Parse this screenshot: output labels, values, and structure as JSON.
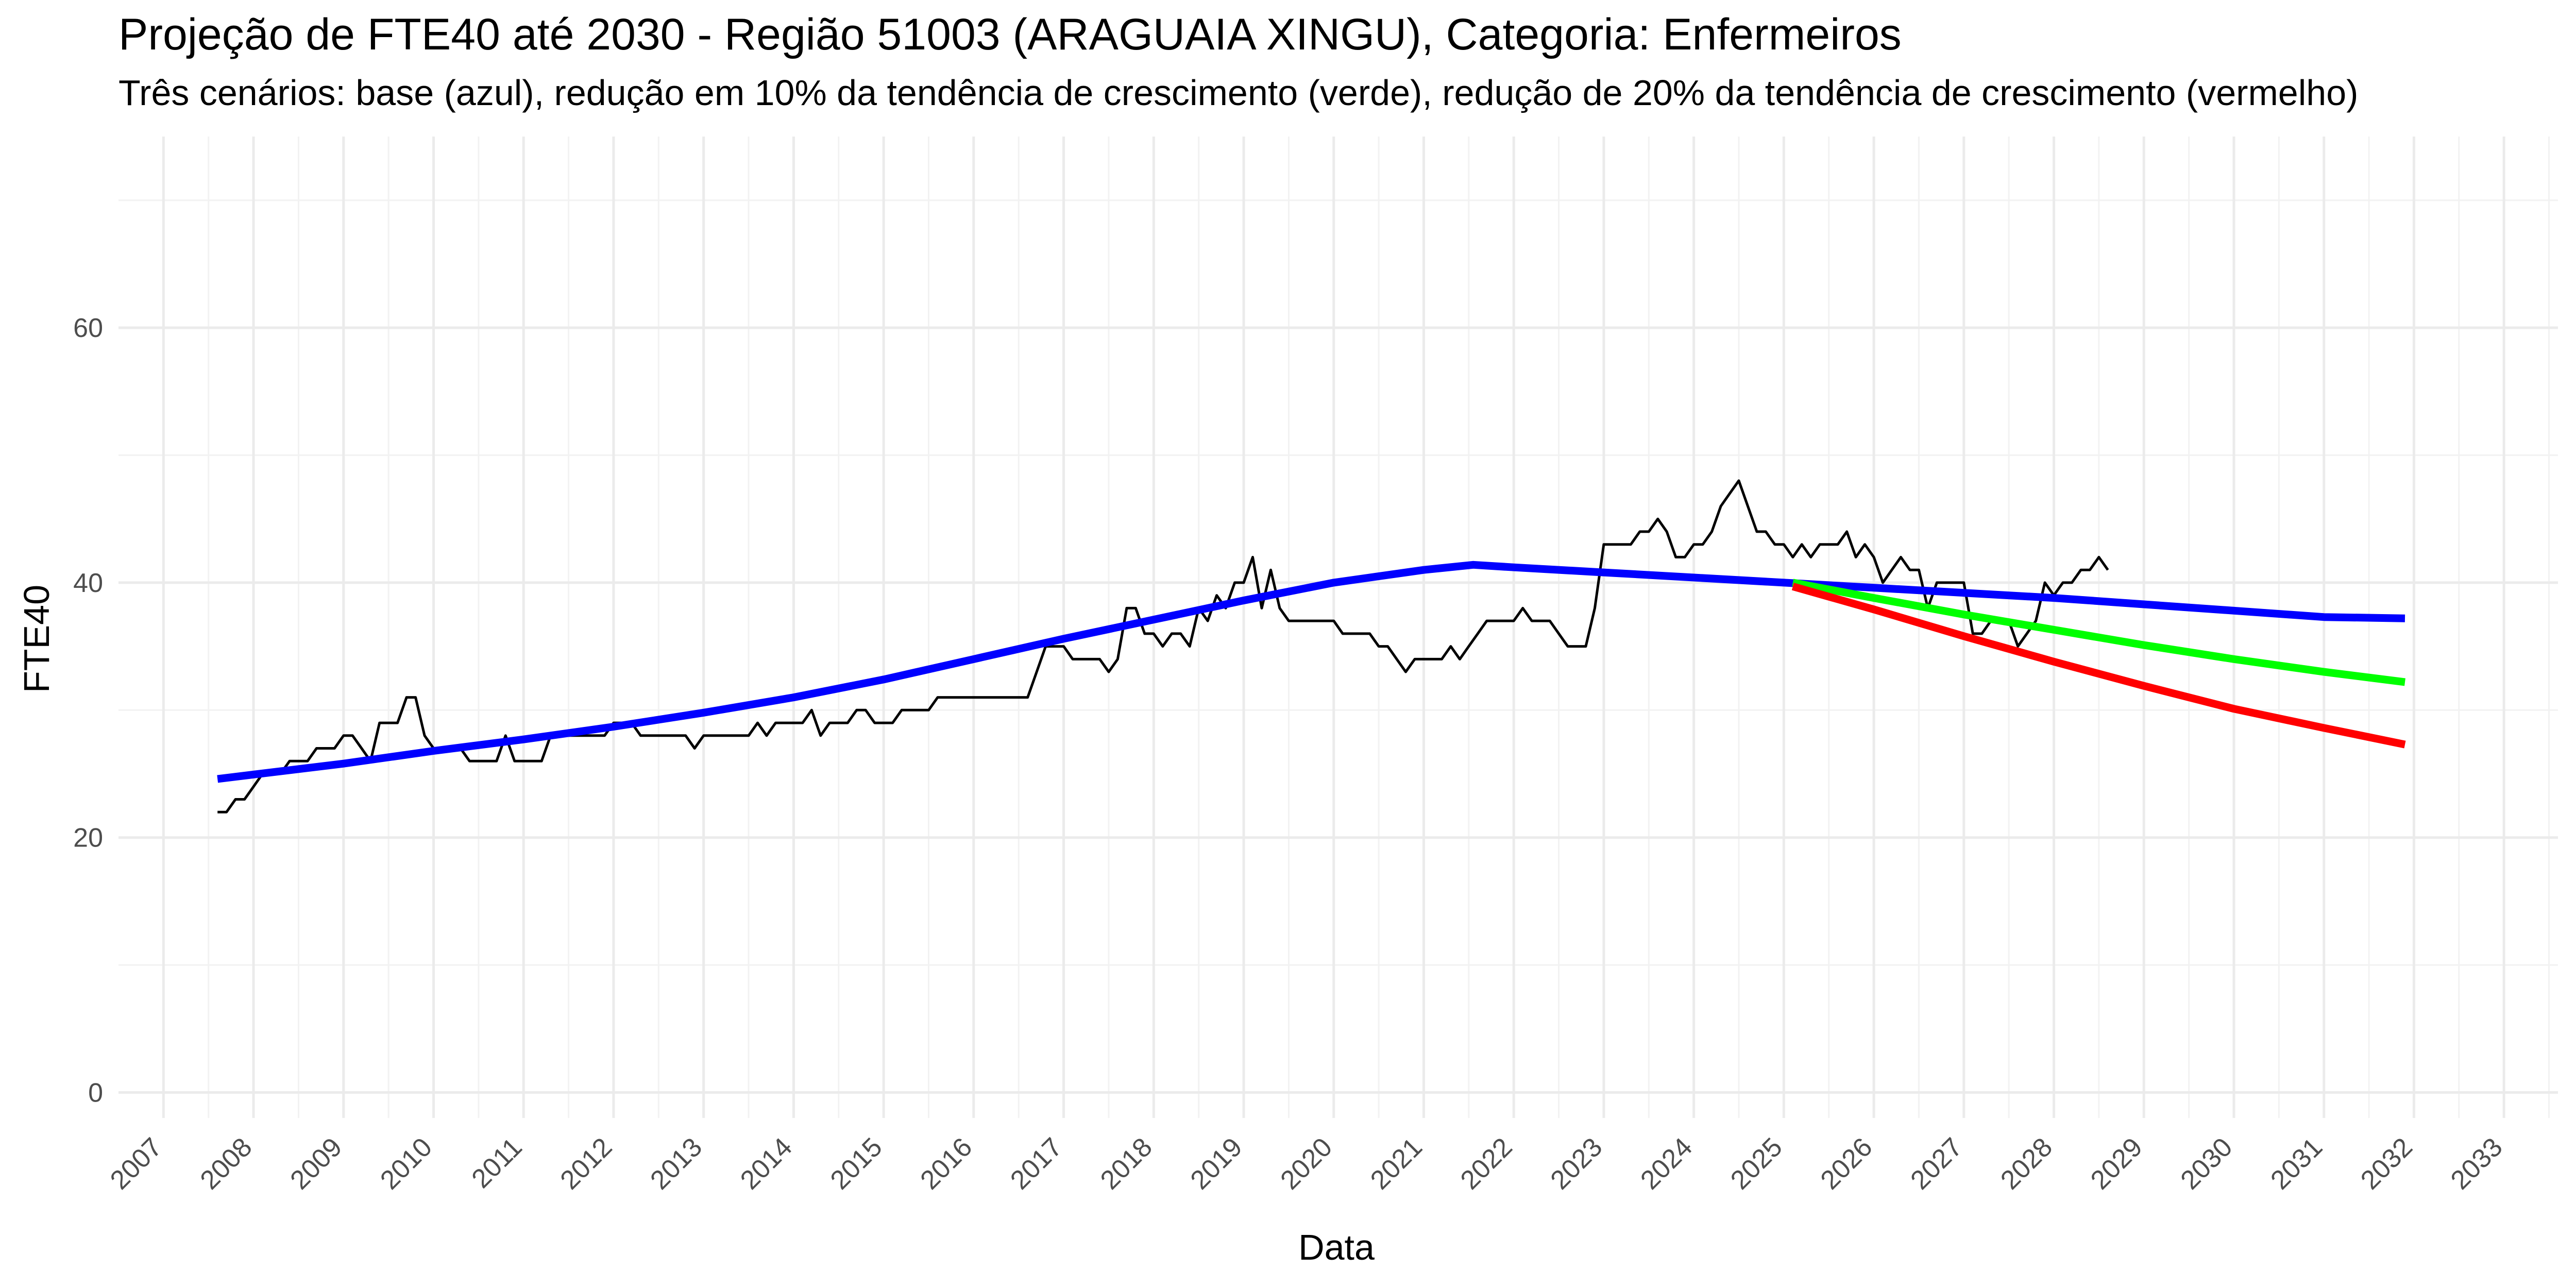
{
  "chart_data": {
    "type": "line",
    "title": "Projeção de FTE40 até 2030 - Região 51003 (ARAGUAIA XINGU), Categoria: Enfermeiros",
    "subtitle": "Três cenários: base (azul), redução em 10% da tendência de crescimento (verde), redução de 20% da tendência de crescimento (vermelho)",
    "xlabel": "Data",
    "ylabel": "FTE40",
    "xlim": [
      2006.5,
      2033.6
    ],
    "ylim": [
      -2,
      75
    ],
    "x_ticks": [
      2007,
      2008,
      2009,
      2010,
      2011,
      2012,
      2013,
      2014,
      2015,
      2016,
      2017,
      2018,
      2019,
      2020,
      2021,
      2022,
      2023,
      2024,
      2025,
      2026,
      2027,
      2028,
      2029,
      2030,
      2031,
      2032,
      2033
    ],
    "y_ticks": [
      0,
      20,
      40,
      60
    ],
    "grid": true,
    "legend": "none",
    "series": [
      {
        "color": "#000000",
        "points": [
          [
            2007.6,
            22
          ],
          [
            2007.7,
            22
          ],
          [
            2007.8,
            23
          ],
          [
            2007.9,
            23
          ],
          [
            2008.0,
            24
          ],
          [
            2008.1,
            25
          ],
          [
            2008.2,
            25
          ],
          [
            2008.3,
            25
          ],
          [
            2008.4,
            26
          ],
          [
            2008.5,
            26
          ],
          [
            2008.6,
            26
          ],
          [
            2008.7,
            27
          ],
          [
            2008.8,
            27
          ],
          [
            2008.9,
            27
          ],
          [
            2009.0,
            28
          ],
          [
            2009.1,
            28
          ],
          [
            2009.2,
            27
          ],
          [
            2009.3,
            26
          ],
          [
            2009.4,
            29
          ],
          [
            2009.5,
            29
          ],
          [
            2009.6,
            29
          ],
          [
            2009.7,
            31
          ],
          [
            2009.8,
            31
          ],
          [
            2009.9,
            28
          ],
          [
            2010.0,
            27
          ],
          [
            2010.1,
            27
          ],
          [
            2010.2,
            27
          ],
          [
            2010.3,
            27
          ],
          [
            2010.4,
            26
          ],
          [
            2010.5,
            26
          ],
          [
            2010.6,
            26
          ],
          [
            2010.7,
            26
          ],
          [
            2010.8,
            28
          ],
          [
            2010.9,
            26
          ],
          [
            2011.0,
            26
          ],
          [
            2011.1,
            26
          ],
          [
            2011.2,
            26
          ],
          [
            2011.3,
            28
          ],
          [
            2011.4,
            28
          ],
          [
            2011.5,
            28
          ],
          [
            2011.6,
            28
          ],
          [
            2011.7,
            28
          ],
          [
            2011.8,
            28
          ],
          [
            2011.9,
            28
          ],
          [
            2012.0,
            29
          ],
          [
            2012.1,
            29
          ],
          [
            2012.2,
            29
          ],
          [
            2012.3,
            28
          ],
          [
            2012.4,
            28
          ],
          [
            2012.5,
            28
          ],
          [
            2012.6,
            28
          ],
          [
            2012.7,
            28
          ],
          [
            2012.8,
            28
          ],
          [
            2012.9,
            27
          ],
          [
            2013.0,
            28
          ],
          [
            2013.1,
            28
          ],
          [
            2013.2,
            28
          ],
          [
            2013.3,
            28
          ],
          [
            2013.4,
            28
          ],
          [
            2013.5,
            28
          ],
          [
            2013.6,
            29
          ],
          [
            2013.7,
            28
          ],
          [
            2013.8,
            29
          ],
          [
            2013.9,
            29
          ],
          [
            2014.0,
            29
          ],
          [
            2014.1,
            29
          ],
          [
            2014.2,
            30
          ],
          [
            2014.3,
            28
          ],
          [
            2014.4,
            29
          ],
          [
            2014.5,
            29
          ],
          [
            2014.6,
            29
          ],
          [
            2014.7,
            30
          ],
          [
            2014.8,
            30
          ],
          [
            2014.9,
            29
          ],
          [
            2015.0,
            29
          ],
          [
            2015.1,
            29
          ],
          [
            2015.2,
            30
          ],
          [
            2015.3,
            30
          ],
          [
            2015.4,
            30
          ],
          [
            2015.5,
            30
          ],
          [
            2015.6,
            31
          ],
          [
            2015.7,
            31
          ],
          [
            2015.8,
            31
          ],
          [
            2016.0,
            31
          ],
          [
            2016.2,
            31
          ],
          [
            2016.4,
            31
          ],
          [
            2016.6,
            31
          ],
          [
            2016.7,
            33
          ],
          [
            2016.8,
            35
          ],
          [
            2016.9,
            35
          ],
          [
            2017.0,
            35
          ],
          [
            2017.1,
            34
          ],
          [
            2017.2,
            34
          ],
          [
            2017.3,
            34
          ],
          [
            2017.4,
            34
          ],
          [
            2017.5,
            33
          ],
          [
            2017.6,
            34
          ],
          [
            2017.7,
            38
          ],
          [
            2017.8,
            38
          ],
          [
            2017.9,
            36
          ],
          [
            2018.0,
            36
          ],
          [
            2018.1,
            35
          ],
          [
            2018.2,
            36
          ],
          [
            2018.3,
            36
          ],
          [
            2018.4,
            35
          ],
          [
            2018.5,
            38
          ],
          [
            2018.6,
            37
          ],
          [
            2018.7,
            39
          ],
          [
            2018.8,
            38
          ],
          [
            2018.9,
            40
          ],
          [
            2019.0,
            40
          ],
          [
            2019.1,
            42
          ],
          [
            2019.2,
            38
          ],
          [
            2019.3,
            41
          ],
          [
            2019.4,
            38
          ],
          [
            2019.5,
            37
          ],
          [
            2019.6,
            37
          ],
          [
            2019.7,
            37
          ],
          [
            2019.8,
            37
          ],
          [
            2020.0,
            37
          ],
          [
            2020.1,
            36
          ],
          [
            2020.2,
            36
          ],
          [
            2020.3,
            36
          ],
          [
            2020.4,
            36
          ],
          [
            2020.5,
            35
          ],
          [
            2020.6,
            35
          ],
          [
            2020.7,
            34
          ],
          [
            2020.8,
            33
          ],
          [
            2020.9,
            34
          ],
          [
            2021.0,
            34
          ],
          [
            2021.1,
            34
          ],
          [
            2021.2,
            34
          ],
          [
            2021.3,
            35
          ],
          [
            2021.4,
            34
          ],
          [
            2021.5,
            35
          ],
          [
            2021.6,
            36
          ],
          [
            2021.7,
            37
          ],
          [
            2021.8,
            37
          ],
          [
            2021.9,
            37
          ],
          [
            2022.0,
            37
          ],
          [
            2022.1,
            38
          ],
          [
            2022.2,
            37
          ],
          [
            2022.3,
            37
          ],
          [
            2022.4,
            37
          ],
          [
            2022.5,
            36
          ],
          [
            2022.6,
            35
          ],
          [
            2022.7,
            35
          ],
          [
            2022.8,
            35
          ],
          [
            2022.9,
            38
          ],
          [
            2023.0,
            43
          ],
          [
            2023.1,
            43
          ],
          [
            2023.2,
            43
          ],
          [
            2023.3,
            43
          ],
          [
            2023.4,
            44
          ],
          [
            2023.5,
            44
          ],
          [
            2023.6,
            45
          ],
          [
            2023.7,
            44
          ],
          [
            2023.8,
            42
          ],
          [
            2023.9,
            42
          ],
          [
            2024.0,
            43
          ],
          [
            2024.1,
            43
          ],
          [
            2024.2,
            44
          ],
          [
            2024.3,
            46
          ],
          [
            2024.4,
            47
          ],
          [
            2024.5,
            48
          ],
          [
            2024.6,
            46
          ],
          [
            2024.7,
            44
          ],
          [
            2024.8,
            44
          ],
          [
            2024.9,
            43
          ],
          [
            2025.0,
            43
          ],
          [
            2025.1,
            42
          ],
          [
            2025.2,
            43
          ],
          [
            2025.3,
            42
          ],
          [
            2025.4,
            43
          ],
          [
            2025.5,
            43
          ],
          [
            2025.6,
            43
          ],
          [
            2025.7,
            44
          ],
          [
            2025.8,
            42
          ],
          [
            2025.9,
            43
          ],
          [
            2026.0,
            42
          ],
          [
            2026.1,
            40
          ],
          [
            2026.2,
            41
          ],
          [
            2026.3,
            42
          ],
          [
            2026.4,
            41
          ],
          [
            2026.5,
            41
          ],
          [
            2026.6,
            38
          ],
          [
            2026.7,
            40
          ],
          [
            2026.8,
            40
          ],
          [
            2026.9,
            40
          ],
          [
            2027.0,
            40
          ],
          [
            2027.1,
            36
          ],
          [
            2027.2,
            36
          ],
          [
            2027.3,
            37
          ],
          [
            2027.4,
            37
          ],
          [
            2027.5,
            37
          ],
          [
            2027.6,
            35
          ],
          [
            2027.7,
            36
          ],
          [
            2027.8,
            37
          ],
          [
            2027.9,
            40
          ],
          [
            2028.0,
            39
          ],
          [
            2028.1,
            40
          ],
          [
            2028.2,
            40
          ],
          [
            2028.3,
            41
          ],
          [
            2028.4,
            41
          ],
          [
            2028.5,
            42
          ],
          [
            2028.6,
            41
          ]
        ]
      },
      {
        "color": "#0000ff",
        "points": [
          [
            2007.6,
            24.6
          ],
          [
            2009.0,
            25.8
          ],
          [
            2010.0,
            26.8
          ],
          [
            2011.0,
            27.7
          ],
          [
            2012.0,
            28.7
          ],
          [
            2013.0,
            29.8
          ],
          [
            2014.0,
            31.0
          ],
          [
            2015.0,
            32.4
          ],
          [
            2016.0,
            34.0
          ],
          [
            2017.0,
            35.6
          ],
          [
            2018.0,
            37.1
          ],
          [
            2019.0,
            38.6
          ],
          [
            2020.0,
            40.0
          ],
          [
            2021.0,
            41.0
          ],
          [
            2021.55,
            41.4
          ],
          [
            2022.0,
            41.2
          ],
          [
            2023.0,
            40.8
          ],
          [
            2024.0,
            40.4
          ],
          [
            2025.0,
            40.0
          ],
          [
            2026.0,
            39.6
          ],
          [
            2027.0,
            39.2
          ],
          [
            2028.0,
            38.8
          ],
          [
            2029.0,
            38.3
          ],
          [
            2030.0,
            37.8
          ],
          [
            2031.0,
            37.3
          ],
          [
            2031.9,
            37.2
          ]
        ]
      },
      {
        "color": "#00ff00",
        "points": [
          [
            2025.1,
            40.0
          ],
          [
            2026.0,
            38.8
          ],
          [
            2027.0,
            37.5
          ],
          [
            2028.0,
            36.3
          ],
          [
            2029.0,
            35.1
          ],
          [
            2030.0,
            34.0
          ],
          [
            2031.0,
            33.0
          ],
          [
            2031.9,
            32.2
          ]
        ]
      },
      {
        "color": "#ff0000",
        "points": [
          [
            2025.1,
            39.7
          ],
          [
            2026.0,
            37.9
          ],
          [
            2027.0,
            35.8
          ],
          [
            2028.0,
            33.8
          ],
          [
            2029.0,
            31.9
          ],
          [
            2030.0,
            30.1
          ],
          [
            2031.0,
            28.6
          ],
          [
            2031.9,
            27.3
          ]
        ]
      }
    ]
  }
}
